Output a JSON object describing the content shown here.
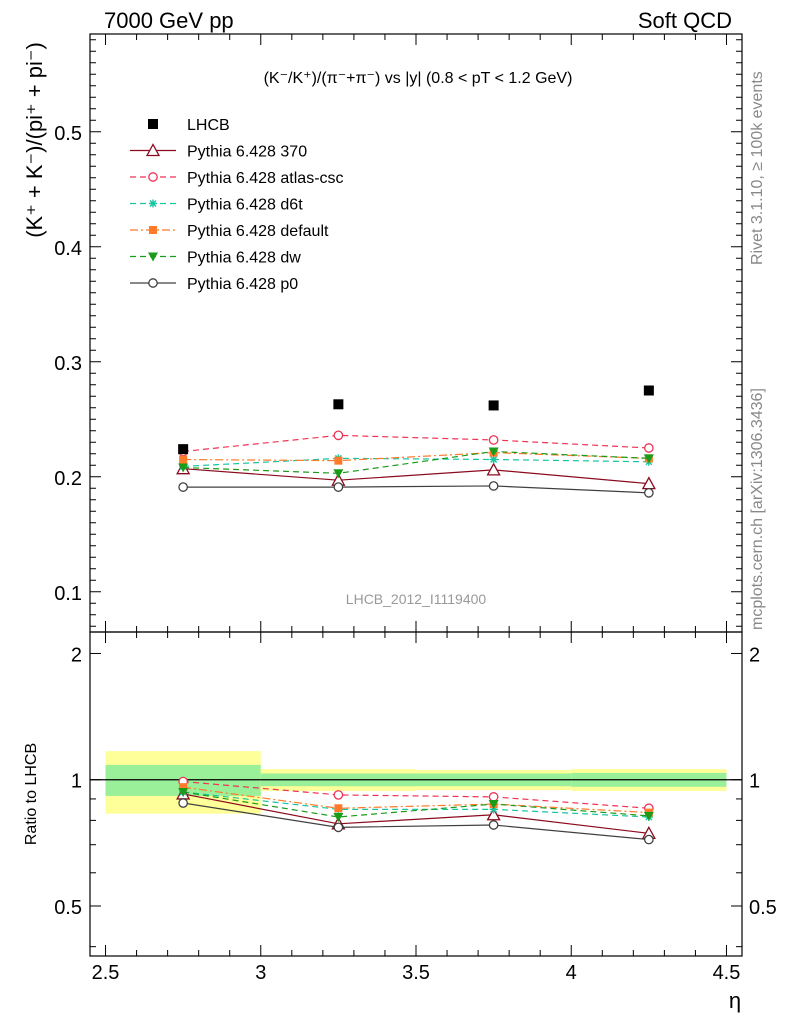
{
  "header": {
    "left": "7000 GeV pp",
    "right": "Soft QCD"
  },
  "side_labels": {
    "rivet": "Rivet 3.1.10, ≥ 100k events",
    "source": "mcplots.cern.ch [arXiv:1306.3436]"
  },
  "chart_data": [
    {
      "type": "line",
      "title": "(K⁻/K⁺)/(π⁻+π⁻) vs |y| (0.8 < pT < 1.2 GeV)",
      "ylabel": "(K⁺ + K⁻)/(pi⁺ + pi⁻)",
      "watermark": "LHCB_2012_I1119400",
      "x": [
        2.75,
        3.25,
        3.75,
        4.25
      ],
      "xlim": [
        2.45,
        4.55
      ],
      "ylim": [
        0.065,
        0.585
      ],
      "yticks": [
        "0.1",
        "0.2",
        "0.3",
        "0.4",
        "0.5"
      ],
      "legend_position": "top-left",
      "reference": {
        "name": "LHCB",
        "color": "#000000",
        "x": [
          2.75,
          3.25,
          3.75,
          4.25
        ],
        "values": [
          0.224,
          0.263,
          0.262,
          0.275
        ]
      },
      "series": [
        {
          "name": "Pythia 6.428 370",
          "color": "#8b0a1e",
          "dash": "solid",
          "marker": "triangle-open",
          "values": [
            0.207,
            0.197,
            0.206,
            0.194
          ],
          "errors": [
            0.004,
            0.004,
            0.004,
            0.004
          ]
        },
        {
          "name": "Pythia 6.428 atlas-csc",
          "color": "#ee3355",
          "dash": "dashed",
          "marker": "circle-open",
          "values": [
            0.222,
            0.236,
            0.232,
            0.225
          ],
          "errors": [
            0.004,
            0.004,
            0.004,
            0.004
          ]
        },
        {
          "name": "Pythia 6.428 d6t",
          "color": "#17c5a0",
          "dash": "dashed",
          "marker": "star",
          "values": [
            0.209,
            0.216,
            0.215,
            0.213
          ],
          "errors": [
            0.003,
            0.003,
            0.003,
            0.003
          ]
        },
        {
          "name": "Pythia 6.428 default",
          "color": "#ff7a2a",
          "dash": "dashdot",
          "marker": "square",
          "values": [
            0.215,
            0.214,
            0.221,
            0.216
          ],
          "errors": [
            0.003,
            0.003,
            0.003,
            0.003
          ]
        },
        {
          "name": "Pythia 6.428 dw",
          "color": "#1a9c1a",
          "dash": "dashed",
          "marker": "triangle-down",
          "values": [
            0.208,
            0.203,
            0.222,
            0.216
          ],
          "errors": [
            0.003,
            0.003,
            0.003,
            0.003
          ]
        },
        {
          "name": "Pythia 6.428 p0",
          "color": "#404040",
          "dash": "solid",
          "marker": "circle-open",
          "values": [
            0.191,
            0.191,
            0.192,
            0.186
          ],
          "errors": [
            0.003,
            0.003,
            0.003,
            0.004
          ]
        }
      ]
    },
    {
      "type": "line",
      "ylabel": "Ratio to LHCB",
      "xlabel": "η",
      "xlim": [
        2.45,
        4.55
      ],
      "ylim": [
        0.38,
        2.25
      ],
      "xticks": [
        "2.5",
        "3",
        "3.5",
        "4",
        "4.5"
      ],
      "yticks": [
        "0.5",
        "1",
        "2"
      ],
      "bands": [
        {
          "x0": 2.5,
          "x1": 3.0,
          "inner": [
            0.915,
            1.085
          ],
          "outer": [
            0.83,
            1.17
          ]
        },
        {
          "x0": 3.0,
          "x1": 3.5,
          "inner": [
            0.965,
            1.035
          ],
          "outer": [
            0.94,
            1.06
          ]
        },
        {
          "x0": 3.5,
          "x1": 4.0,
          "inner": [
            0.965,
            1.035
          ],
          "outer": [
            0.945,
            1.055
          ]
        },
        {
          "x0": 4.0,
          "x1": 4.5,
          "inner": [
            0.962,
            1.038
          ],
          "outer": [
            0.94,
            1.06
          ]
        }
      ],
      "series": [
        {
          "name": "Pythia 6.428 370",
          "values": [
            0.925,
            0.785,
            0.825,
            0.745
          ]
        },
        {
          "name": "Pythia 6.428 atlas-csc",
          "values": [
            0.99,
            0.92,
            0.91,
            0.855
          ]
        },
        {
          "name": "Pythia 6.428 d6t",
          "values": [
            0.935,
            0.85,
            0.85,
            0.815
          ]
        },
        {
          "name": "Pythia 6.428 default",
          "values": [
            0.96,
            0.855,
            0.875,
            0.835
          ]
        },
        {
          "name": "Pythia 6.428 dw",
          "values": [
            0.935,
            0.815,
            0.875,
            0.82
          ]
        },
        {
          "name": "Pythia 6.428 p0",
          "values": [
            0.88,
            0.77,
            0.78,
            0.72
          ]
        }
      ]
    }
  ]
}
